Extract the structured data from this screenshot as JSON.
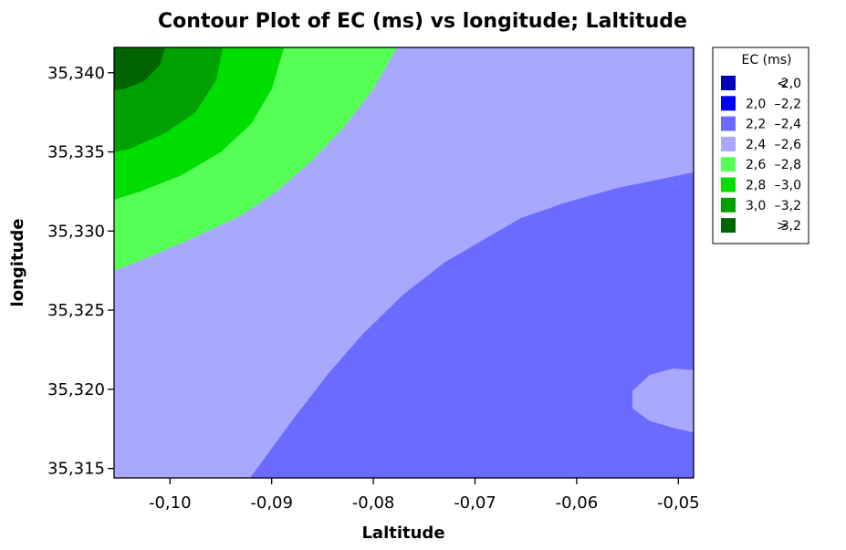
{
  "chart_data": {
    "type": "contour",
    "title": "Contour Plot of EC (ms) vs longitude; Laltitude",
    "xlabel": "Laltitude",
    "ylabel": "longitude",
    "xlim": [
      -0.1055,
      -0.0485
    ],
    "ylim": [
      35.3144,
      35.3416
    ],
    "x_ticks": [
      -0.1,
      -0.09,
      -0.08,
      -0.07,
      -0.06,
      -0.05
    ],
    "x_tick_labels": [
      "-0,10",
      "-0,09",
      "-0,08",
      "-0,07",
      "-0,06",
      "-0,05"
    ],
    "y_ticks": [
      35.315,
      35.32,
      35.325,
      35.33,
      35.335,
      35.34
    ],
    "y_tick_labels": [
      "35,315",
      "35,320",
      "35,325",
      "35,330",
      "35,335",
      "35,340"
    ],
    "legend": {
      "title": "EC (ms)",
      "position": "right",
      "entries": [
        {
          "op": "<",
          "lo": "",
          "hi": "2,0",
          "color": "#0000B4"
        },
        {
          "op": "–",
          "lo": "2,0",
          "hi": "2,2",
          "color": "#0000F0"
        },
        {
          "op": "–",
          "lo": "2,2",
          "hi": "2,4",
          "color": "#6B6BFF"
        },
        {
          "op": "–",
          "lo": "2,4",
          "hi": "2,6",
          "color": "#A8A8FF"
        },
        {
          "op": "–",
          "lo": "2,6",
          "hi": "2,8",
          "color": "#55FF55"
        },
        {
          "op": "–",
          "lo": "2,8",
          "hi": "3,0",
          "color": "#00DD00"
        },
        {
          "op": "–",
          "lo": "3,0",
          "hi": "3,2",
          "color": "#00A000"
        },
        {
          "op": ">",
          "lo": "",
          "hi": "3,2",
          "color": "#006400"
        }
      ]
    },
    "regions": [
      {
        "level": "2,2 – 2,4",
        "color": "#6B6BFF",
        "points": [
          [
            -0.0921,
            35.3144
          ],
          [
            -0.088,
            35.318
          ],
          [
            -0.0844,
            35.321
          ],
          [
            -0.081,
            35.3235
          ],
          [
            -0.077,
            35.326
          ],
          [
            -0.073,
            35.328
          ],
          [
            -0.069,
            35.3295
          ],
          [
            -0.0655,
            35.3308
          ],
          [
            -0.061,
            35.3318
          ],
          [
            -0.056,
            35.3327
          ],
          [
            -0.05,
            35.3335
          ],
          [
            -0.0485,
            35.3337
          ],
          [
            -0.0485,
            35.3144
          ]
        ]
      },
      {
        "level": "2,4 – 2,6",
        "color": "#A8A8FF",
        "points": [
          [
            -0.0485,
            35.3212
          ],
          [
            -0.0505,
            35.3213
          ],
          [
            -0.0528,
            35.3209
          ],
          [
            -0.0545,
            35.3199
          ],
          [
            -0.0545,
            35.3188
          ],
          [
            -0.0528,
            35.318
          ],
          [
            -0.05,
            35.3175
          ],
          [
            -0.0485,
            35.3173
          ]
        ]
      },
      {
        "level": "2,6 – 2,8",
        "color": "#55FF55",
        "points": [
          [
            -0.1055,
            35.3416
          ],
          [
            -0.0777,
            35.3416
          ],
          [
            -0.08,
            35.339
          ],
          [
            -0.083,
            35.3365
          ],
          [
            -0.086,
            35.3345
          ],
          [
            -0.0895,
            35.3325
          ],
          [
            -0.093,
            35.331
          ],
          [
            -0.098,
            35.3295
          ],
          [
            -0.102,
            35.3284
          ],
          [
            -0.1055,
            35.3275
          ]
        ]
      },
      {
        "level": "2,8 – 3,0",
        "color": "#00DD00",
        "points": [
          [
            -0.1055,
            35.3416
          ],
          [
            -0.0888,
            35.3416
          ],
          [
            -0.09,
            35.339
          ],
          [
            -0.092,
            35.3368
          ],
          [
            -0.095,
            35.335
          ],
          [
            -0.099,
            35.3335
          ],
          [
            -0.103,
            35.3325
          ],
          [
            -0.1055,
            35.332
          ]
        ]
      },
      {
        "level": "3,0 – 3,2",
        "color": "#00A000",
        "points": [
          [
            -0.1055,
            35.3416
          ],
          [
            -0.0948,
            35.3416
          ],
          [
            -0.0955,
            35.3395
          ],
          [
            -0.0975,
            35.3375
          ],
          [
            -0.1005,
            35.3362
          ],
          [
            -0.104,
            35.3352
          ],
          [
            -0.1055,
            35.335
          ]
        ]
      },
      {
        "level": "> 3,2",
        "color": "#006400",
        "points": [
          [
            -0.1055,
            35.3416
          ],
          [
            -0.1005,
            35.3416
          ],
          [
            -0.101,
            35.3405
          ],
          [
            -0.1025,
            35.3395
          ],
          [
            -0.1045,
            35.339
          ],
          [
            -0.1055,
            35.3389
          ]
        ]
      }
    ],
    "background_level": "2,4 – 2,6",
    "background_color": "#A8A8FF",
    "grid": false
  }
}
